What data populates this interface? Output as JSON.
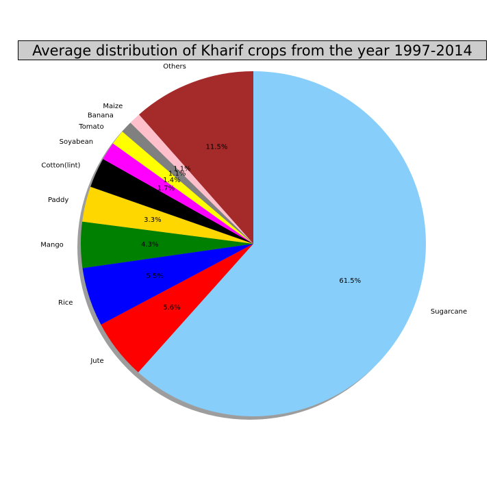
{
  "chart_data": {
    "type": "pie",
    "title": "Average distribution of Kharif crops from the year 1997-2014",
    "start_angle_deg": 90,
    "direction": "clockwise",
    "shadow": true,
    "slices": [
      {
        "label": "Sugarcane",
        "value": 61.5,
        "pct_label": "61.5%",
        "color": "#87cefa"
      },
      {
        "label": "Jute",
        "value": 5.6,
        "pct_label": "5.6%",
        "color": "#ff0000"
      },
      {
        "label": "Rice",
        "value": 5.5,
        "pct_label": "5.5%",
        "color": "#0000ff"
      },
      {
        "label": "Mango",
        "value": 4.3,
        "pct_label": "4.3%",
        "color": "#008000"
      },
      {
        "label": "Paddy",
        "value": 3.3,
        "pct_label": "3.3%",
        "color": "#ffd700"
      },
      {
        "label": "Cotton(lint)",
        "value": 2.8,
        "pct_label": "",
        "color": "#000000"
      },
      {
        "label": "Soyabean",
        "value": 1.7,
        "pct_label": "1.7%",
        "color": "#ff00ff"
      },
      {
        "label": "Tomato",
        "value": 1.4,
        "pct_label": "1.4%",
        "color": "#ffff00"
      },
      {
        "label": "Banana",
        "value": 1.1,
        "pct_label": "1.1%",
        "color": "#808080"
      },
      {
        "label": "Maize",
        "value": 1.1,
        "pct_label": "1.1%",
        "color": "#ffc0cb"
      },
      {
        "label": "Others",
        "value": 11.5,
        "pct_label": "11.5%",
        "color": "#a52a2a"
      }
    ]
  }
}
